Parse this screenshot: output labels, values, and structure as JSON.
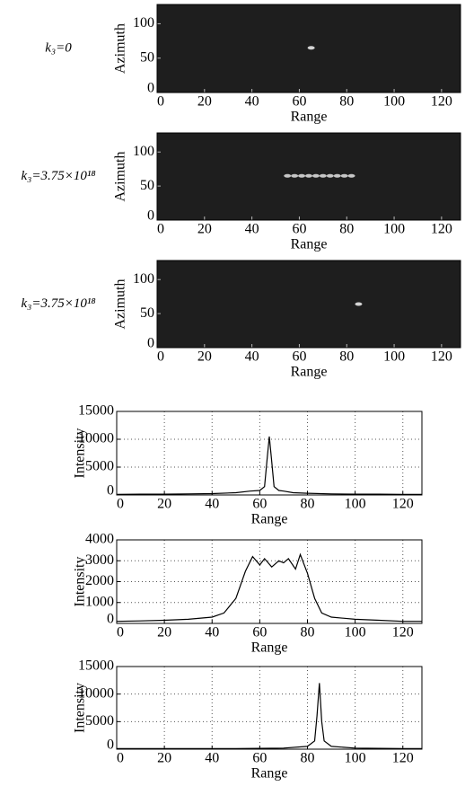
{
  "chart_data": [
    {
      "type": "scatter",
      "label": "k₃=0",
      "xlabel": "Range",
      "ylabel": "Azimuth",
      "xlim": [
        0,
        128
      ],
      "ylim": [
        0,
        128
      ],
      "xticks": [
        0,
        20,
        40,
        60,
        80,
        100,
        120
      ],
      "yticks": [
        0,
        50,
        100
      ],
      "background": "#1e1e1e",
      "color": "#e8e8e8",
      "x": [
        65
      ],
      "values": [
        65
      ]
    },
    {
      "type": "scatter",
      "label": "k₃=3.75×10¹⁸",
      "xlabel": "Range",
      "ylabel": "Azimuth",
      "xlim": [
        0,
        128
      ],
      "ylim": [
        0,
        128
      ],
      "xticks": [
        0,
        20,
        40,
        60,
        80,
        100,
        120
      ],
      "yticks": [
        0,
        50,
        100
      ],
      "background": "#1e1e1e",
      "color": "#d8d8d8",
      "x": [
        55,
        58,
        61,
        64,
        67,
        70,
        73,
        76,
        79,
        82
      ],
      "values": [
        65,
        65,
        65,
        65,
        65,
        65,
        65,
        65,
        65,
        65
      ]
    },
    {
      "type": "scatter",
      "label": "k₃=3.75×10¹⁸",
      "xlabel": "Range",
      "ylabel": "Azimuth",
      "xlim": [
        0,
        128
      ],
      "ylim": [
        0,
        128
      ],
      "xticks": [
        0,
        20,
        40,
        60,
        80,
        100,
        120
      ],
      "yticks": [
        0,
        50,
        100
      ],
      "background": "#1e1e1e",
      "color": "#e8e8e8",
      "x": [
        85
      ],
      "values": [
        64
      ]
    },
    {
      "type": "line",
      "xlabel": "Range",
      "ylabel": "Intensity",
      "xlim": [
        0,
        128
      ],
      "ylim": [
        0,
        15000
      ],
      "xticks": [
        0,
        20,
        40,
        60,
        80,
        100,
        120
      ],
      "yticks": [
        0,
        5000,
        10000,
        15000
      ],
      "grid": true,
      "color": "#000000",
      "x": [
        0,
        10,
        20,
        30,
        40,
        50,
        56,
        60,
        62,
        63,
        64,
        65,
        66,
        68,
        70,
        74,
        80,
        90,
        100,
        110,
        120,
        128
      ],
      "values": [
        100,
        150,
        150,
        200,
        250,
        400,
        700,
        800,
        1500,
        6000,
        10500,
        6000,
        1500,
        800,
        700,
        400,
        300,
        200,
        150,
        150,
        100,
        100
      ]
    },
    {
      "type": "line",
      "xlabel": "Range",
      "ylabel": "Intensity",
      "xlim": [
        0,
        128
      ],
      "ylim": [
        0,
        4000
      ],
      "xticks": [
        0,
        20,
        40,
        60,
        80,
        100,
        120
      ],
      "yticks": [
        0,
        1000,
        2000,
        3000,
        4000
      ],
      "grid": true,
      "color": "#000000",
      "x": [
        0,
        10,
        20,
        30,
        40,
        45,
        50,
        54,
        57,
        60,
        62,
        65,
        68,
        70,
        72,
        75,
        77,
        80,
        83,
        86,
        90,
        100,
        110,
        120,
        128
      ],
      "values": [
        100,
        120,
        150,
        200,
        300,
        500,
        1200,
        2500,
        3200,
        2800,
        3100,
        2700,
        3000,
        2900,
        3100,
        2600,
        3300,
        2400,
        1200,
        500,
        300,
        200,
        150,
        100,
        100
      ]
    },
    {
      "type": "line",
      "xlabel": "Range",
      "ylabel": "Intensity",
      "xlim": [
        0,
        128
      ],
      "ylim": [
        0,
        15000
      ],
      "xticks": [
        0,
        20,
        40,
        60,
        80,
        100,
        120
      ],
      "yticks": [
        0,
        5000,
        10000,
        15000
      ],
      "grid": true,
      "color": "#000000",
      "x": [
        0,
        10,
        20,
        30,
        40,
        50,
        60,
        70,
        80,
        83,
        84,
        85,
        86,
        87,
        90,
        100,
        110,
        120,
        128
      ],
      "values": [
        100,
        100,
        100,
        100,
        100,
        100,
        150,
        200,
        500,
        1500,
        6000,
        12000,
        5000,
        1500,
        500,
        200,
        150,
        100,
        100
      ]
    }
  ]
}
